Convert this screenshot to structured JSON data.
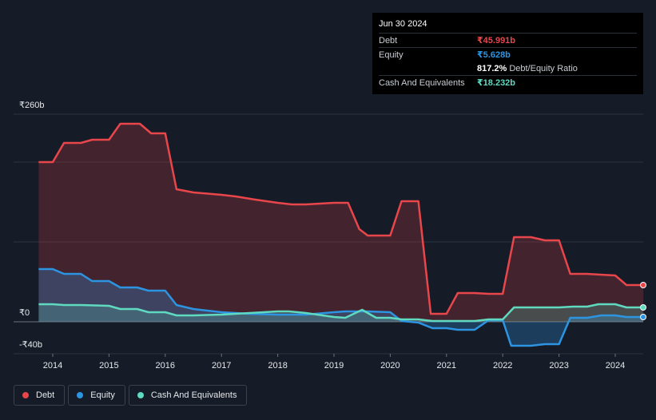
{
  "tooltip": {
    "date": "Jun 30 2024",
    "rows": [
      {
        "label": "Debt",
        "value": "₹45.991b",
        "color": "#e9464b"
      },
      {
        "label": "Equity",
        "value": "₹5.628b",
        "color": "#2d94e2"
      },
      {
        "label": "",
        "value": "817.2%",
        "extra": "Debt/Equity Ratio",
        "color": "#ffffff"
      },
      {
        "label": "Cash And Equivalents",
        "value": "₹18.232b",
        "color": "#5fd9c0"
      }
    ]
  },
  "legend": [
    {
      "label": "Debt",
      "color": "#e9464b"
    },
    {
      "label": "Equity",
      "color": "#2d94e2"
    },
    {
      "label": "Cash And Equivalents",
      "color": "#5fd9c0"
    }
  ],
  "chart_data": {
    "type": "line",
    "x_ticks": [
      "2014",
      "2015",
      "2016",
      "2017",
      "2018",
      "2019",
      "2020",
      "2021",
      "2022",
      "2023",
      "2024"
    ],
    "y_tick_labels": [
      {
        "value": 260,
        "label": "₹260b"
      },
      {
        "value": 0,
        "label": "₹0"
      },
      {
        "value": -40,
        "label": "-₹40b"
      }
    ],
    "ylim": [
      -40,
      260
    ],
    "xlim": [
      2013.6,
      2024.5
    ],
    "grid": true,
    "legend_position": "bottom-left",
    "series": [
      {
        "name": "Debt",
        "color": "#e9464b",
        "points": [
          [
            2013.75,
            200
          ],
          [
            2014.0,
            200
          ],
          [
            2014.2,
            224
          ],
          [
            2014.5,
            224
          ],
          [
            2014.7,
            228
          ],
          [
            2015.0,
            228
          ],
          [
            2015.2,
            248
          ],
          [
            2015.55,
            248
          ],
          [
            2015.75,
            236
          ],
          [
            2016.0,
            236
          ],
          [
            2016.2,
            166
          ],
          [
            2016.5,
            162
          ],
          [
            2017.0,
            159
          ],
          [
            2017.25,
            157
          ],
          [
            2017.6,
            153
          ],
          [
            2018.0,
            149
          ],
          [
            2018.25,
            147
          ],
          [
            2018.5,
            147
          ],
          [
            2019.0,
            149
          ],
          [
            2019.25,
            149
          ],
          [
            2019.45,
            116
          ],
          [
            2019.6,
            108
          ],
          [
            2019.85,
            108
          ],
          [
            2020.0,
            108
          ],
          [
            2020.2,
            151
          ],
          [
            2020.5,
            151
          ],
          [
            2020.72,
            10
          ],
          [
            2021.0,
            10
          ],
          [
            2021.2,
            36
          ],
          [
            2021.5,
            36
          ],
          [
            2021.75,
            35
          ],
          [
            2022.0,
            35
          ],
          [
            2022.2,
            106
          ],
          [
            2022.5,
            106
          ],
          [
            2022.75,
            102
          ],
          [
            2023.0,
            102
          ],
          [
            2023.2,
            60
          ],
          [
            2023.5,
            60
          ],
          [
            2024.0,
            58
          ],
          [
            2024.2,
            46
          ],
          [
            2024.5,
            46
          ]
        ]
      },
      {
        "name": "Equity",
        "color": "#2d94e2",
        "points": [
          [
            2013.75,
            66
          ],
          [
            2014.0,
            66
          ],
          [
            2014.2,
            60
          ],
          [
            2014.5,
            60
          ],
          [
            2014.7,
            51
          ],
          [
            2015.0,
            51
          ],
          [
            2015.2,
            43
          ],
          [
            2015.5,
            43
          ],
          [
            2015.7,
            39
          ],
          [
            2016.0,
            39
          ],
          [
            2016.2,
            21
          ],
          [
            2016.5,
            16
          ],
          [
            2017.0,
            12
          ],
          [
            2017.5,
            10
          ],
          [
            2018.0,
            9
          ],
          [
            2018.5,
            9
          ],
          [
            2019.0,
            12
          ],
          [
            2019.2,
            13
          ],
          [
            2019.6,
            13
          ],
          [
            2020.0,
            12
          ],
          [
            2020.2,
            1
          ],
          [
            2020.5,
            -1
          ],
          [
            2020.75,
            -8
          ],
          [
            2021.0,
            -8
          ],
          [
            2021.2,
            -10
          ],
          [
            2021.5,
            -10
          ],
          [
            2021.75,
            2
          ],
          [
            2022.0,
            2
          ],
          [
            2022.15,
            -30
          ],
          [
            2022.5,
            -30
          ],
          [
            2022.75,
            -28
          ],
          [
            2023.0,
            -28
          ],
          [
            2023.2,
            5
          ],
          [
            2023.5,
            5
          ],
          [
            2023.75,
            8
          ],
          [
            2024.0,
            8
          ],
          [
            2024.2,
            6
          ],
          [
            2024.5,
            6
          ]
        ]
      },
      {
        "name": "Cash And Equivalents",
        "color": "#5fd9c0",
        "points": [
          [
            2013.75,
            22
          ],
          [
            2014.0,
            22
          ],
          [
            2014.2,
            21
          ],
          [
            2014.5,
            21
          ],
          [
            2015.0,
            20
          ],
          [
            2015.2,
            16
          ],
          [
            2015.5,
            16
          ],
          [
            2015.7,
            12
          ],
          [
            2016.0,
            12
          ],
          [
            2016.2,
            8
          ],
          [
            2016.5,
            8
          ],
          [
            2017.0,
            9
          ],
          [
            2017.5,
            11
          ],
          [
            2018.0,
            13
          ],
          [
            2018.2,
            13
          ],
          [
            2018.5,
            11
          ],
          [
            2018.8,
            8
          ],
          [
            2019.0,
            6
          ],
          [
            2019.2,
            5
          ],
          [
            2019.5,
            15
          ],
          [
            2019.75,
            5
          ],
          [
            2020.0,
            5
          ],
          [
            2020.2,
            3
          ],
          [
            2020.5,
            3
          ],
          [
            2020.75,
            1
          ],
          [
            2021.0,
            1
          ],
          [
            2021.5,
            1
          ],
          [
            2021.75,
            3
          ],
          [
            2022.0,
            3
          ],
          [
            2022.2,
            18
          ],
          [
            2022.5,
            18
          ],
          [
            2023.0,
            18
          ],
          [
            2023.25,
            19
          ],
          [
            2023.5,
            19
          ],
          [
            2023.7,
            22
          ],
          [
            2024.0,
            22
          ],
          [
            2024.2,
            18
          ],
          [
            2024.5,
            18
          ]
        ]
      }
    ]
  }
}
